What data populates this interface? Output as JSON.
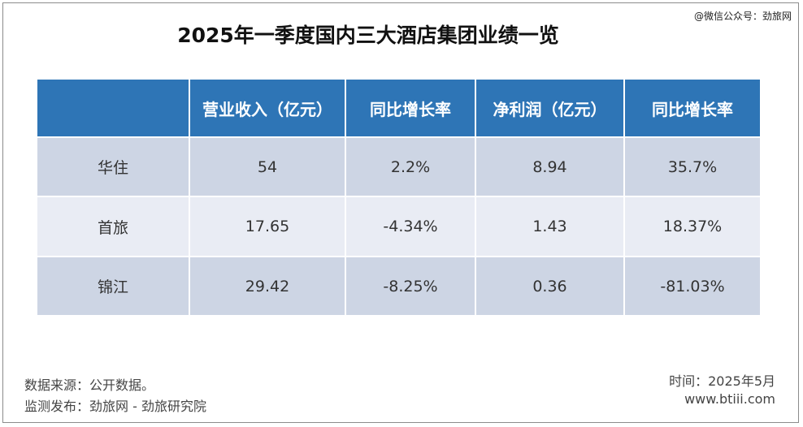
{
  "watermark": "@微信公众号：劲旅网",
  "title": "2025年一季度国内三大酒店集团业绩一览",
  "table": {
    "header": [
      "营业收入（亿元）",
      "同比增长率",
      "净利润（亿元）",
      "同比增长率"
    ],
    "rows": [
      [
        "华住",
        "54",
        "2.2%",
        "8.94",
        "35.7%"
      ],
      [
        "首旅",
        "17.65",
        "-4.34%",
        "1.43",
        "18.37%"
      ],
      [
        "锦江",
        "29.42",
        "-8.25%",
        "0.36",
        "-81.03%"
      ]
    ]
  },
  "footer": {
    "source": "数据来源：公开数据。",
    "publisher": "监测发布：劲旅网 - 劲旅研究院",
    "date": "时间：2025年5月",
    "website": "www.btiii.com"
  }
}
